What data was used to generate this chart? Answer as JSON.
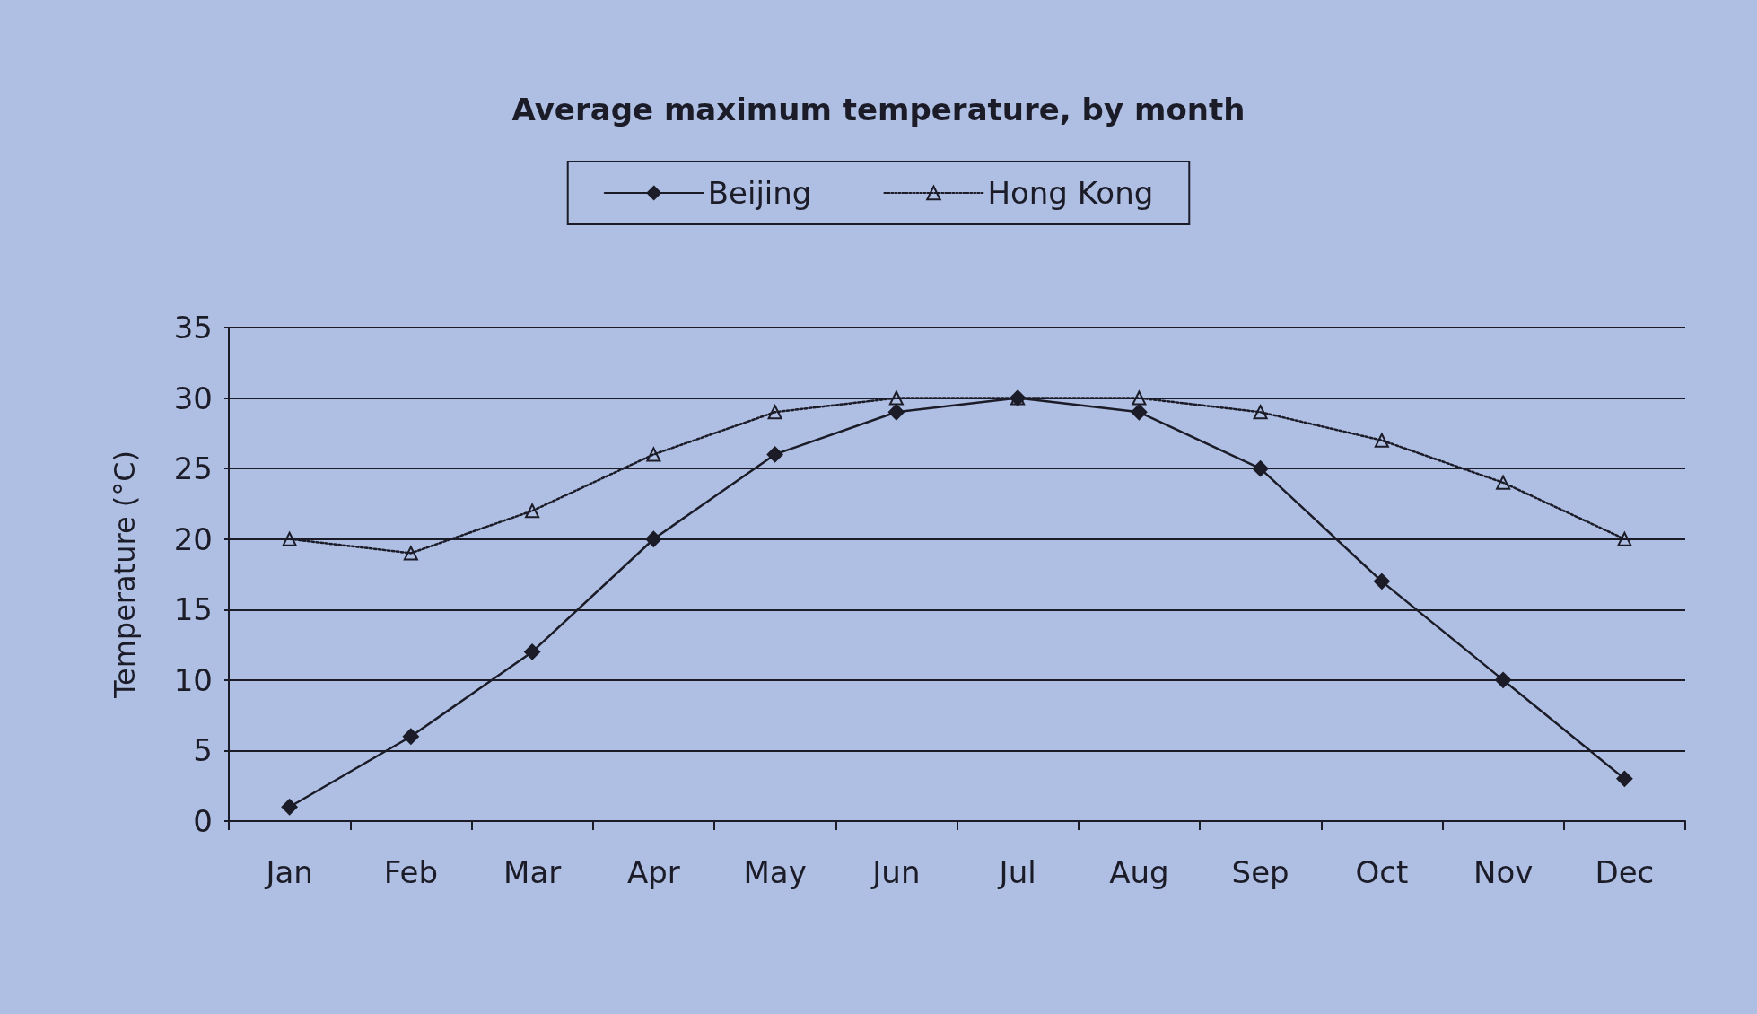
{
  "chart_data": {
    "type": "line",
    "title": "Average maximum temperature, by month",
    "ylabel": "Temperature (°C)",
    "categories": [
      "Jan",
      "Feb",
      "Mar",
      "Apr",
      "May",
      "Jun",
      "Jul",
      "Aug",
      "Sep",
      "Oct",
      "Nov",
      "Dec"
    ],
    "series": [
      {
        "name": "Beijing",
        "color": "#1c1c28",
        "marker": "diamond",
        "line_style": "solid",
        "values": [
          1,
          6,
          12,
          20,
          26,
          29,
          30,
          29,
          25,
          17,
          10,
          3
        ]
      },
      {
        "name": "Hong Kong",
        "color": "#1c1c28",
        "marker": "triangle",
        "line_style": "dotted",
        "values": [
          20,
          19,
          22,
          26,
          29,
          30,
          30,
          30,
          29,
          27,
          24,
          20
        ]
      }
    ],
    "ylim": [
      0,
      35
    ],
    "yticks": [
      0,
      5,
      10,
      15,
      20,
      25,
      30,
      35
    ],
    "grid": "y",
    "legend": "top"
  }
}
